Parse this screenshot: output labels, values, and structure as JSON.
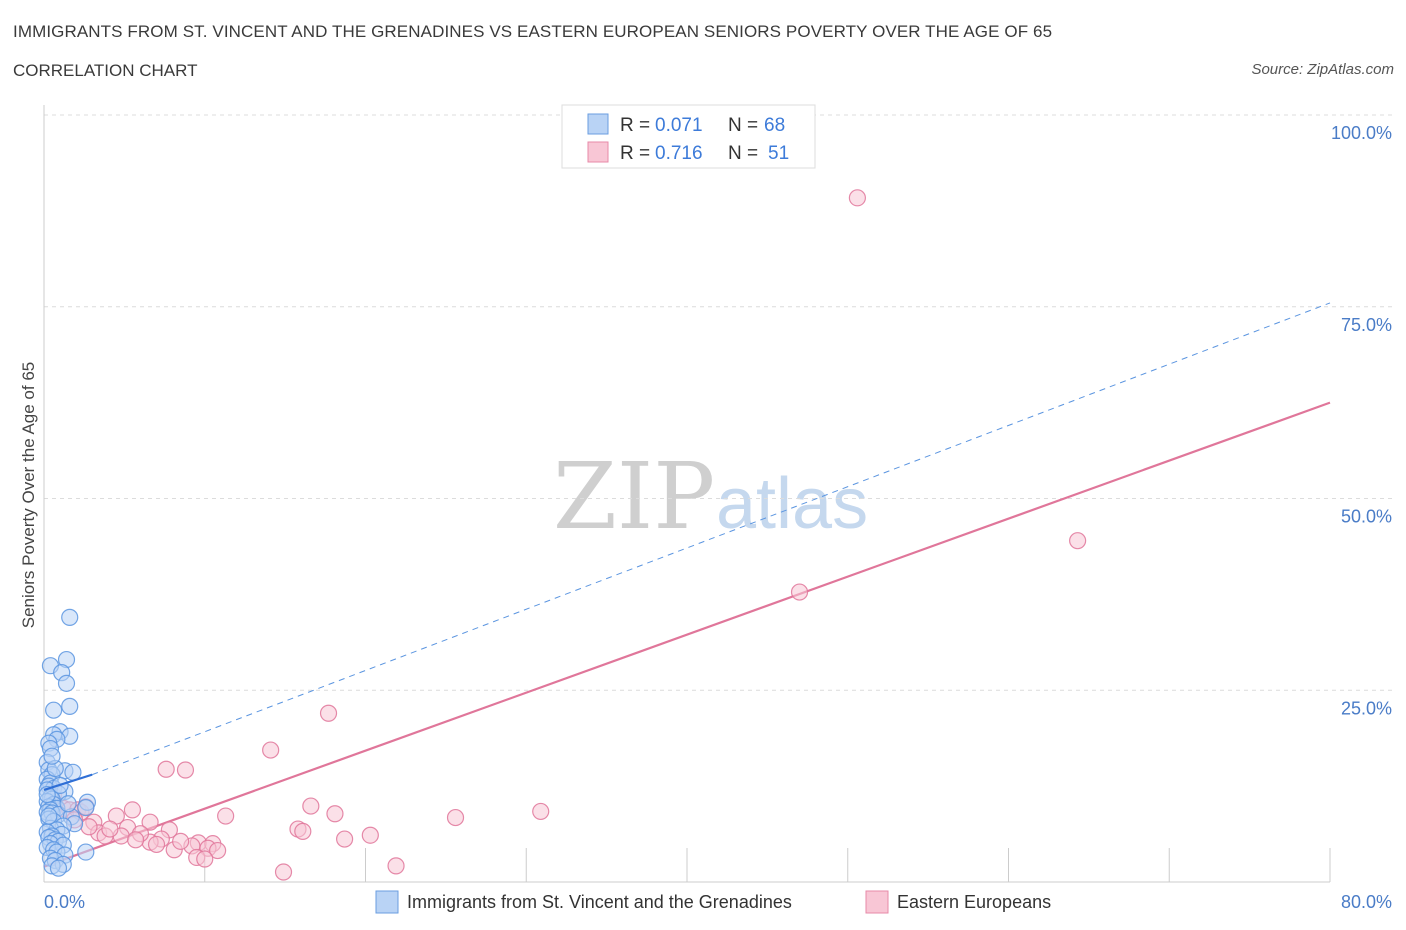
{
  "header": {
    "title": "IMMIGRANTS FROM ST. VINCENT AND THE GRENADINES VS EASTERN EUROPEAN SENIORS POVERTY OVER THE AGE OF 65",
    "subtitle": "CORRELATION CHART",
    "source": "Source: ZipAtlas.com"
  },
  "watermark": {
    "zip": "ZIP",
    "atlas": "atlas"
  },
  "legend": {
    "r_label": "R =",
    "n_label": "N =",
    "series": [
      {
        "r": "0.071",
        "n": "68",
        "fill": "#b9d3f5",
        "stroke": "#6a9ee0"
      },
      {
        "r": "0.716",
        "n": "51",
        "fill": "#f8c6d5",
        "stroke": "#e78aa8"
      }
    ]
  },
  "chart_data": {
    "type": "scatter",
    "title": "",
    "xlabel": "",
    "ylabel": "Seniors Poverty Over the Age of 65",
    "xlim": [
      0,
      80
    ],
    "ylim": [
      0,
      100
    ],
    "x_tick_labels": [
      "0.0%",
      "80.0%"
    ],
    "y_ticks": [
      25,
      50,
      75,
      100
    ],
    "y_tick_labels": [
      "25.0%",
      "50.0%",
      "75.0%",
      "100.0%"
    ],
    "grid": true,
    "legend_position": "bottom",
    "series": [
      {
        "name": "Immigrants from St. Vincent and the Grenadines",
        "color": "#5b95e0",
        "fill": "#b9d3f5",
        "points": [
          [
            1.6,
            34.5
          ],
          [
            1.4,
            29.0
          ],
          [
            0.4,
            28.2
          ],
          [
            1.1,
            27.3
          ],
          [
            1.4,
            25.9
          ],
          [
            1.6,
            22.9
          ],
          [
            0.6,
            22.4
          ],
          [
            1.0,
            19.6
          ],
          [
            0.6,
            19.2
          ],
          [
            1.6,
            19.0
          ],
          [
            0.8,
            18.6
          ],
          [
            0.3,
            18.1
          ],
          [
            0.4,
            17.4
          ],
          [
            0.2,
            15.6
          ],
          [
            0.3,
            14.6
          ],
          [
            1.3,
            14.5
          ],
          [
            1.8,
            14.3
          ],
          [
            0.5,
            14.0
          ],
          [
            0.2,
            13.4
          ],
          [
            0.4,
            12.9
          ],
          [
            0.3,
            12.5
          ],
          [
            0.6,
            12.2
          ],
          [
            0.2,
            12.0
          ],
          [
            1.3,
            11.8
          ],
          [
            0.9,
            11.5
          ],
          [
            0.4,
            11.0
          ],
          [
            0.5,
            10.8
          ],
          [
            0.2,
            10.5
          ],
          [
            2.7,
            10.4
          ],
          [
            0.6,
            10.1
          ],
          [
            0.3,
            9.8
          ],
          [
            0.8,
            9.6
          ],
          [
            0.4,
            9.4
          ],
          [
            0.2,
            9.1
          ],
          [
            0.5,
            9.0
          ],
          [
            2.6,
            9.7
          ],
          [
            0.9,
            8.8
          ],
          [
            1.7,
            8.5
          ],
          [
            0.3,
            8.2
          ],
          [
            0.6,
            7.9
          ],
          [
            1.9,
            7.6
          ],
          [
            1.2,
            7.3
          ],
          [
            0.4,
            7.0
          ],
          [
            0.8,
            6.8
          ],
          [
            0.2,
            6.5
          ],
          [
            1.1,
            6.2
          ],
          [
            0.5,
            6.0
          ],
          [
            0.3,
            5.8
          ],
          [
            0.7,
            5.5
          ],
          [
            0.9,
            5.3
          ],
          [
            0.4,
            5.0
          ],
          [
            1.2,
            4.8
          ],
          [
            0.2,
            4.5
          ],
          [
            0.6,
            4.2
          ],
          [
            0.8,
            3.9
          ],
          [
            1.3,
            3.5
          ],
          [
            2.6,
            3.9
          ],
          [
            0.4,
            3.1
          ],
          [
            0.7,
            2.8
          ],
          [
            1.2,
            2.3
          ],
          [
            0.5,
            2.1
          ],
          [
            0.9,
            1.8
          ],
          [
            0.3,
            8.6
          ],
          [
            1.0,
            12.6
          ],
          [
            0.7,
            14.8
          ],
          [
            1.5,
            10.2
          ],
          [
            0.2,
            11.4
          ],
          [
            0.5,
            16.4
          ]
        ],
        "trend": {
          "x": [
            0.0,
            3.0
          ],
          "y": [
            12.0,
            14.0
          ],
          "style": "solid"
        },
        "trend_extension": {
          "x": [
            3.0,
            80.0
          ],
          "y": [
            14.0,
            75.5
          ],
          "style": "dashed"
        }
      },
      {
        "name": "Eastern Europeans",
        "color": "#e0769a",
        "fill": "#f8c6d5",
        "points": [
          [
            50.6,
            89.2
          ],
          [
            64.3,
            44.5
          ],
          [
            47.0,
            37.8
          ],
          [
            17.7,
            22.0
          ],
          [
            14.1,
            17.2
          ],
          [
            7.6,
            14.7
          ],
          [
            8.8,
            14.6
          ],
          [
            0.6,
            11.2
          ],
          [
            0.7,
            10.1
          ],
          [
            1.2,
            9.6
          ],
          [
            1.6,
            9.4
          ],
          [
            2.1,
            9.4
          ],
          [
            2.3,
            9.1
          ],
          [
            2.6,
            9.8
          ],
          [
            5.5,
            9.4
          ],
          [
            16.6,
            9.9
          ],
          [
            18.1,
            8.9
          ],
          [
            25.6,
            8.4
          ],
          [
            30.9,
            9.2
          ],
          [
            11.3,
            8.6
          ],
          [
            4.5,
            8.6
          ],
          [
            3.1,
            7.8
          ],
          [
            6.6,
            7.8
          ],
          [
            5.2,
            7.1
          ],
          [
            3.4,
            6.4
          ],
          [
            4.8,
            6.0
          ],
          [
            7.8,
            6.8
          ],
          [
            7.3,
            5.6
          ],
          [
            6.6,
            5.2
          ],
          [
            9.6,
            5.1
          ],
          [
            10.5,
            5.0
          ],
          [
            9.2,
            4.7
          ],
          [
            10.2,
            4.4
          ],
          [
            10.8,
            4.1
          ],
          [
            8.1,
            4.2
          ],
          [
            15.8,
            6.9
          ],
          [
            16.1,
            6.6
          ],
          [
            18.7,
            5.6
          ],
          [
            20.3,
            6.1
          ],
          [
            9.5,
            3.2
          ],
          [
            10.0,
            3.0
          ],
          [
            14.9,
            1.3
          ],
          [
            21.9,
            2.1
          ],
          [
            3.8,
            6.0
          ],
          [
            6.0,
            6.3
          ],
          [
            7.0,
            4.9
          ],
          [
            2.8,
            7.2
          ],
          [
            4.1,
            6.9
          ],
          [
            5.7,
            5.5
          ],
          [
            8.5,
            5.3
          ],
          [
            1.9,
            8.1
          ]
        ],
        "trend": {
          "x": [
            0.0,
            80.0
          ],
          "y": [
            2.0,
            62.5
          ],
          "style": "solid"
        }
      }
    ]
  }
}
